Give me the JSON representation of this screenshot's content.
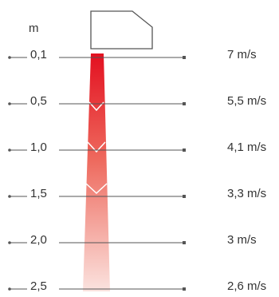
{
  "unit_label": "m",
  "colors": {
    "jet_top": "#e31020",
    "jet_bottom": "#fbe3df",
    "line": "#555555",
    "text": "#333333"
  },
  "rows": [
    {
      "distance": "0,1",
      "speed": "7 m/s"
    },
    {
      "distance": "0,5",
      "speed": "5,5 m/s"
    },
    {
      "distance": "1,0",
      "speed": "4,1 m/s"
    },
    {
      "distance": "1,5",
      "speed": "3,3 m/s"
    },
    {
      "distance": "2,0",
      "speed": "3 m/s"
    },
    {
      "distance": "2,5",
      "speed": "2,6 m/s"
    }
  ]
}
